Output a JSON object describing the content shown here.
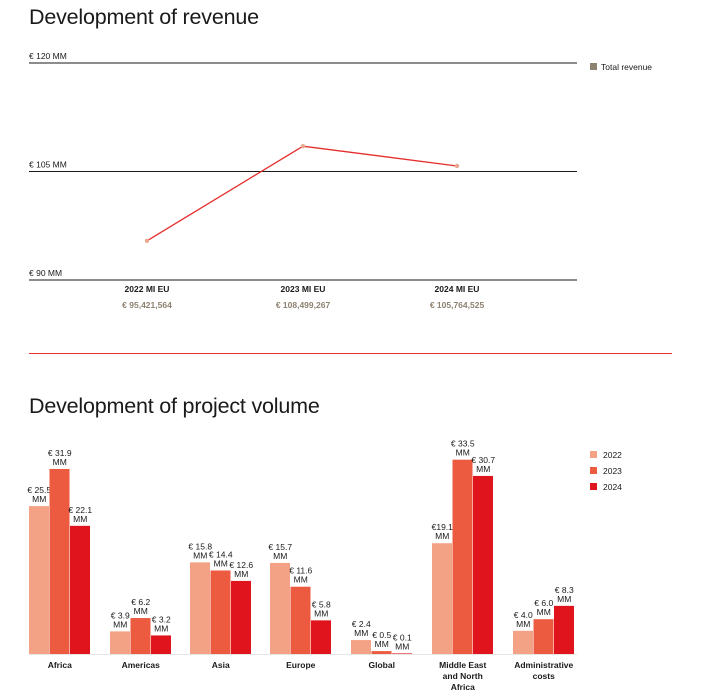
{
  "revenue_title": "Development of revenue",
  "volume_title": "Development of project volume",
  "colors": {
    "revenue_line": "#e52d2a",
    "revenue_marker": "#e8a98e",
    "legend_total": "#8d8270",
    "value_text": "#8d8270",
    "gridline": "#1a1a1a",
    "bar_2022": "#f4a285",
    "bar_2023": "#ec5a40",
    "bar_2024": "#e0141c"
  },
  "chart_data": [
    {
      "type": "line",
      "title": "Development of revenue",
      "y_ticks": [
        "€ 120 MM",
        "€ 105 MM",
        "€ 90 MM"
      ],
      "y_tick_values": [
        120,
        105,
        90
      ],
      "ylim": [
        90,
        120
      ],
      "legend": {
        "label": "Total revenue",
        "position": "top-right"
      },
      "categories": [
        "2022 MI EU",
        "2023 MI EU",
        "2024 MI EU"
      ],
      "value_labels": [
        "€ 95,421,564",
        "€ 108,499,267",
        "€ 105,764,525"
      ],
      "values": [
        95.421564,
        108.499267,
        105.764525
      ]
    },
    {
      "type": "bar",
      "title": "Development of project volume",
      "ylim": [
        0,
        35
      ],
      "legend_position": "top-right",
      "categories": [
        [
          "Africa"
        ],
        [
          "Americas"
        ],
        [
          "Asia"
        ],
        [
          "Europe"
        ],
        [
          "Global"
        ],
        [
          "Middle East",
          "and North",
          "Africa"
        ],
        [
          "Administrative",
          "costs"
        ]
      ],
      "series": [
        {
          "name": "2022",
          "values": [
            25.5,
            3.9,
            15.8,
            15.7,
            2.4,
            19.1,
            4.0
          ],
          "labels": [
            [
              "€ 25.5",
              "MM"
            ],
            [
              "€ 3.9",
              "MM"
            ],
            [
              "€ 15.8",
              "MM"
            ],
            [
              "€ 15.7",
              "MM"
            ],
            [
              "€ 2.4",
              "MM"
            ],
            [
              "€19.1",
              "MM"
            ],
            [
              "€ 4.0",
              "MM"
            ]
          ]
        },
        {
          "name": "2023",
          "values": [
            31.9,
            6.2,
            14.4,
            11.6,
            0.5,
            33.5,
            6.0
          ],
          "labels": [
            [
              "€ 31.9",
              "MM"
            ],
            [
              "€ 6.2",
              "MM"
            ],
            [
              "€ 14.4",
              "MM"
            ],
            [
              "€ 11.6",
              "MM"
            ],
            [
              "€ 0.5",
              "MM"
            ],
            [
              "€ 33.5",
              "MM"
            ],
            [
              "€ 6.0",
              "MM"
            ]
          ]
        },
        {
          "name": "2024",
          "values": [
            22.1,
            3.2,
            12.6,
            5.8,
            0.1,
            30.7,
            8.3
          ],
          "labels": [
            [
              "€ 22.1",
              "MM"
            ],
            [
              "€ 3.2",
              "MM"
            ],
            [
              "€ 12.6",
              "MM"
            ],
            [
              "€ 5.8",
              "MM"
            ],
            [
              "€ 0.1",
              "MM"
            ],
            [
              "€ 30.7",
              "MM"
            ],
            [
              "€ 8.3",
              "MM"
            ]
          ]
        }
      ]
    }
  ]
}
